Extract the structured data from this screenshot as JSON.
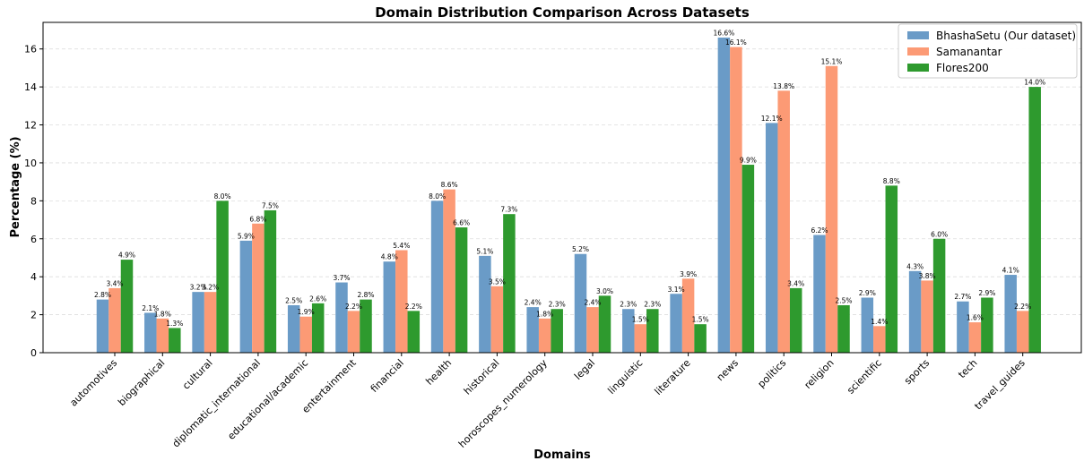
{
  "chart_data": {
    "type": "bar",
    "title": "Domain Distribution Comparison Across Datasets",
    "xlabel": "Domains",
    "ylabel": "Percentage (%)",
    "ylim": [
      0,
      17.4
    ],
    "yticks": [
      0,
      2,
      4,
      6,
      8,
      10,
      12,
      14,
      16
    ],
    "grid": "horizontal dashed",
    "legend_position": "top-right",
    "categories": [
      "automotives",
      "biographical",
      "cultural",
      "diplomatic_international",
      "educational/academic",
      "entertainment",
      "financial",
      "health",
      "historical",
      "horoscopes_numerology",
      "legal",
      "linguistic",
      "literature",
      "news",
      "politics",
      "religion",
      "scientific",
      "sports",
      "tech",
      "travel_guides"
    ],
    "series": [
      {
        "name": "BhashaSetu (Our dataset)",
        "color": "#6a9bc7",
        "values": [
          2.8,
          2.1,
          3.2,
          5.9,
          2.5,
          3.7,
          4.8,
          8.0,
          5.1,
          2.4,
          5.2,
          2.3,
          3.1,
          16.6,
          12.1,
          6.2,
          2.9,
          4.3,
          2.7,
          4.1
        ],
        "labels": [
          "2.8%",
          "2.1%",
          "3.2%",
          "5.9%",
          "2.5%",
          "3.7%",
          "4.8%",
          "8.0%",
          "5.1%",
          "2.4%",
          "5.2%",
          "2.3%",
          "3.1%",
          "16.6%",
          "12.1%",
          "6.2%",
          "2.9%",
          "4.3%",
          "2.7%",
          "4.1%"
        ]
      },
      {
        "name": "Samanantar",
        "color": "#fc9a75",
        "values": [
          3.4,
          1.8,
          3.2,
          6.8,
          1.9,
          2.2,
          5.4,
          8.6,
          3.5,
          1.8,
          2.4,
          1.5,
          3.9,
          16.1,
          13.8,
          15.1,
          1.4,
          3.8,
          1.6,
          2.2
        ],
        "labels": [
          "3.4%",
          "1.8%",
          "3.2%",
          "6.8%",
          "1.9%",
          "2.2%",
          "5.4%",
          "8.6%",
          "3.5%",
          "1.8%",
          "2.4%",
          "1.5%",
          "3.9%",
          "16.1%",
          "13.8%",
          "15.1%",
          "1.4%",
          "3.8%",
          "1.6%",
          "2.2%"
        ]
      },
      {
        "name": "Flores200",
        "color": "#2e9a2e",
        "values": [
          4.9,
          1.3,
          8.0,
          7.5,
          2.6,
          2.8,
          2.2,
          6.6,
          7.3,
          2.3,
          3.0,
          2.3,
          1.5,
          9.9,
          3.4,
          2.5,
          8.8,
          6.0,
          2.9,
          14.0
        ],
        "labels": [
          "4.9%",
          "1.3%",
          "8.0%",
          "7.5%",
          "2.6%",
          "2.8%",
          "2.2%",
          "6.6%",
          "7.3%",
          "2.3%",
          "3.0%",
          "2.3%",
          "1.5%",
          "9.9%",
          "3.4%",
          "2.5%",
          "8.8%",
          "6.0%",
          "2.9%",
          "14.0%"
        ]
      }
    ]
  }
}
